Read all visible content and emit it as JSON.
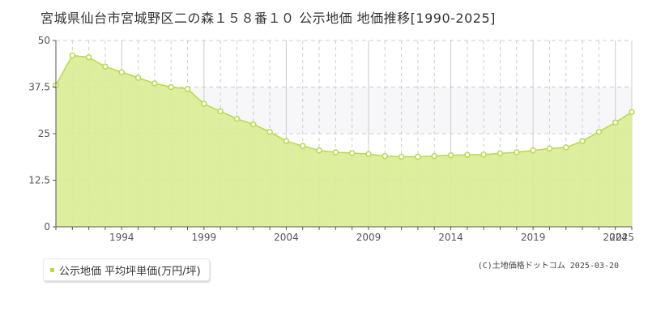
{
  "title": "宮城県仙台市宮城野区二の森１５８番１０ 公示地価 地価推移[1990-2025]",
  "legend": {
    "label": "公示地価 平均坪単価(万円/坪)"
  },
  "copyright": "(C)土地価格ドットコム 2025-03-20",
  "colors": {
    "area": "#d9ec94",
    "line": "#b6d94c",
    "marker_fill": "#ffffff",
    "marker_stroke": "#b6d94c",
    "grid": "#cccccc",
    "highlight_band": "#f7f7fa",
    "axis": "#555555"
  },
  "chart_data": {
    "type": "area",
    "x": [
      1990,
      1991,
      1992,
      1993,
      1994,
      1995,
      1996,
      1997,
      1998,
      1999,
      2000,
      2001,
      2002,
      2003,
      2004,
      2005,
      2006,
      2007,
      2008,
      2009,
      2010,
      2011,
      2012,
      2013,
      2014,
      2015,
      2016,
      2017,
      2018,
      2019,
      2020,
      2021,
      2022,
      2023,
      2024,
      2025
    ],
    "series": [
      {
        "name": "公示地価 平均坪単価(万円/坪)",
        "values": [
          38,
          46,
          45.5,
          43,
          41.5,
          40,
          38.5,
          37.5,
          37,
          33,
          31,
          29,
          27.5,
          25.5,
          23,
          21.7,
          20.5,
          20,
          19.8,
          19.5,
          19,
          18.8,
          18.8,
          19,
          19.2,
          19.3,
          19.4,
          19.7,
          20,
          20.5,
          21,
          21.3,
          23,
          25.5,
          28,
          30.8
        ]
      }
    ],
    "y_ticks": [
      "0",
      "12.5",
      "25",
      "37.5",
      "50"
    ],
    "x_ticks": [
      "1994",
      "1999",
      "2004",
      "2009",
      "2014",
      "2019",
      "2024",
      "2025"
    ],
    "ylim": [
      0,
      50
    ],
    "xlim": [
      1990,
      2025
    ],
    "grid": true,
    "highlight_band": [
      25,
      37.5
    ],
    "legend_position": "bottom-left"
  }
}
